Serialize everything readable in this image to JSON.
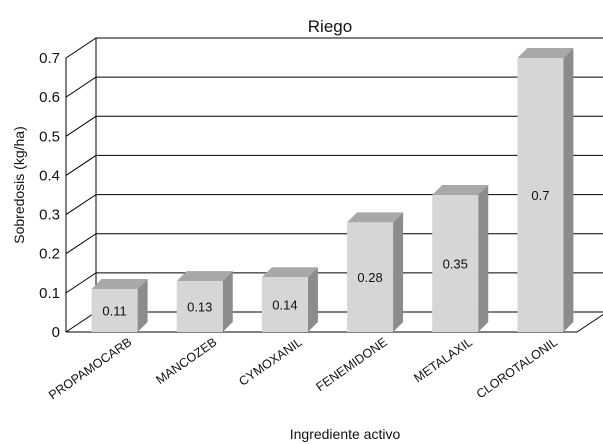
{
  "chart_data": {
    "type": "bar",
    "title": "Riego",
    "xlabel": "Ingrediente activo",
    "ylabel": "Sobredosis (kg/ha)",
    "categories": [
      "PROPAMOCARB",
      "MANCOZEB",
      "CYMOXANIL",
      "FENEMIDONE",
      "METALAXIL",
      "CLOROTALONIL"
    ],
    "values": [
      0.11,
      0.13,
      0.14,
      0.28,
      0.35,
      0.7
    ],
    "data_labels": [
      "0.11",
      "0.13",
      "0.14",
      "0.28",
      "0.35",
      "0.7"
    ],
    "y_ticks": [
      "0",
      "0.1",
      "0.2",
      "0.3",
      "0.4",
      "0.5",
      "0.6",
      "0.7"
    ],
    "ylim": [
      0,
      0.7
    ],
    "grid": true,
    "legend": "none",
    "colors": {
      "bar_front": "#d6d6d6",
      "bar_side": "#8c8c8c",
      "bar_top": "#a8a8a8",
      "grid": "#000000"
    }
  }
}
